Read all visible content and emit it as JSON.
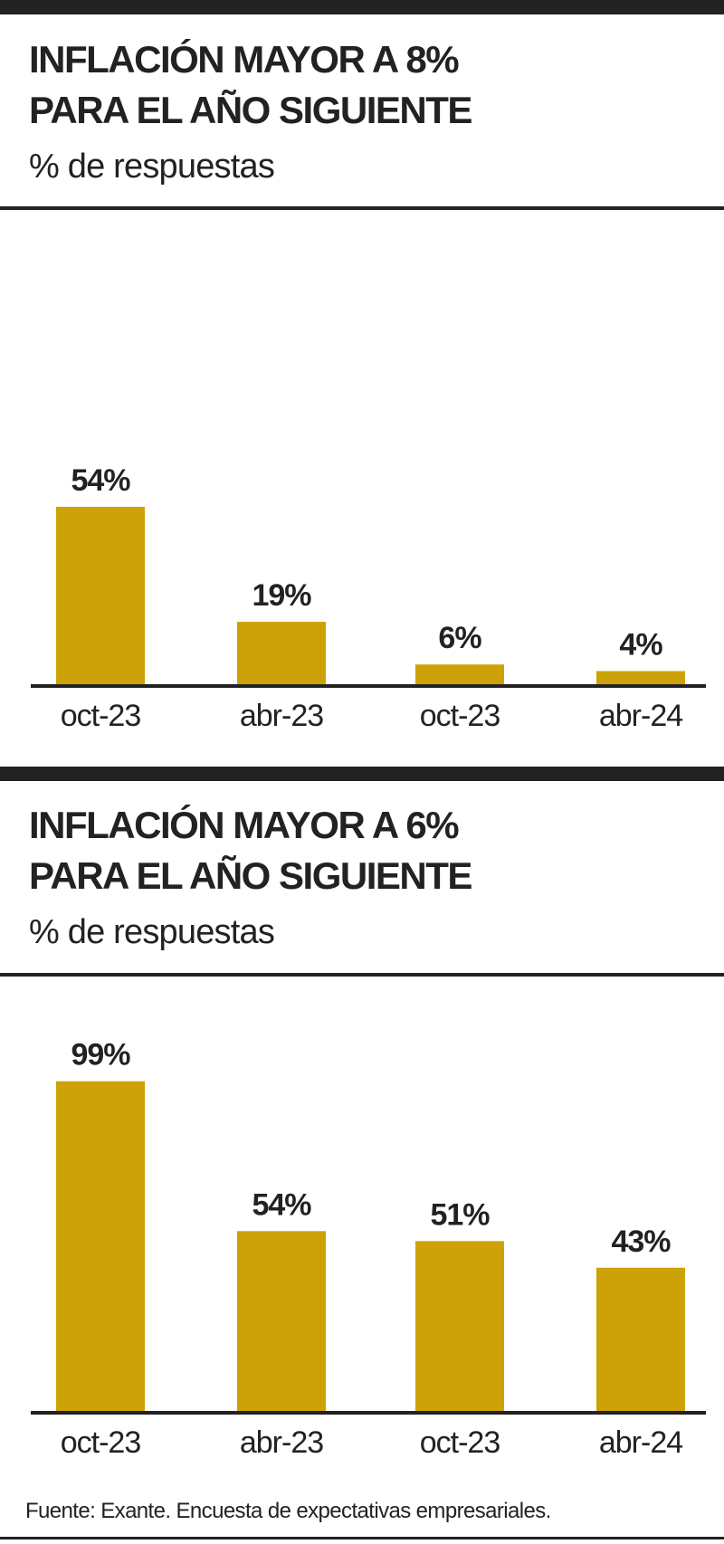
{
  "colors": {
    "bar": "#CDA208",
    "rule": "#222222",
    "text": "#222222"
  },
  "chart_data": [
    {
      "type": "bar",
      "title_lines": [
        "INFLACIÓN MAYOR A  8%",
        "PARA EL AÑO SIGUIENTE"
      ],
      "subtitle": "% de respuestas",
      "categories": [
        "oct-23",
        "abr-23",
        "oct-23",
        "abr-24"
      ],
      "values": [
        54,
        19,
        6,
        4
      ],
      "labels": [
        "54%",
        "19%",
        "6%",
        "4%"
      ],
      "ylim": [
        0,
        100
      ],
      "grid": false,
      "legend": "none"
    },
    {
      "type": "bar",
      "title_lines": [
        "INFLACIÓN MAYOR A  6%",
        "PARA EL AÑO SIGUIENTE"
      ],
      "subtitle": "% de respuestas",
      "categories": [
        "oct-23",
        "abr-23",
        "oct-23",
        "abr-24"
      ],
      "values": [
        99,
        54,
        51,
        43
      ],
      "labels": [
        "99%",
        "54%",
        "51%",
        "43%"
      ],
      "ylim": [
        0,
        100
      ],
      "grid": false,
      "legend": "none"
    }
  ],
  "source": "Fuente: Exante. Encuesta de expectativas empresariales."
}
